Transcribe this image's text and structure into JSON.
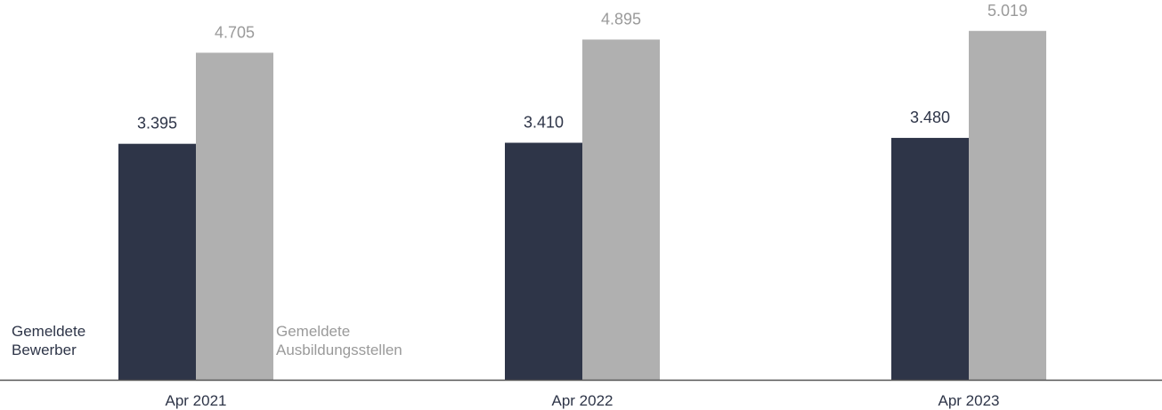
{
  "chart_data": {
    "type": "bar",
    "categories": [
      "Apr 2021",
      "Apr 2022",
      "Apr 2023"
    ],
    "series": [
      {
        "name": "Gemeldete\nBewerber",
        "values": [
          3395,
          3410,
          3480
        ],
        "value_labels": [
          "3.395",
          "3.410",
          "3.480"
        ],
        "color": "#2e3548",
        "label_color": "#2e3548"
      },
      {
        "name": "Gemeldete\nAusbildungsstellen",
        "values": [
          4705,
          4895,
          5019
        ],
        "value_labels": [
          "4.705",
          "4.895",
          "5.019"
        ],
        "color": "#b0b0b0",
        "label_color": "#9a9a9a"
      }
    ],
    "title": "",
    "xlabel": "",
    "ylabel": "",
    "ylim": [
      0,
      5400
    ],
    "grid": false,
    "legend": "inline at bottom-left",
    "axis_color": "#555555"
  }
}
